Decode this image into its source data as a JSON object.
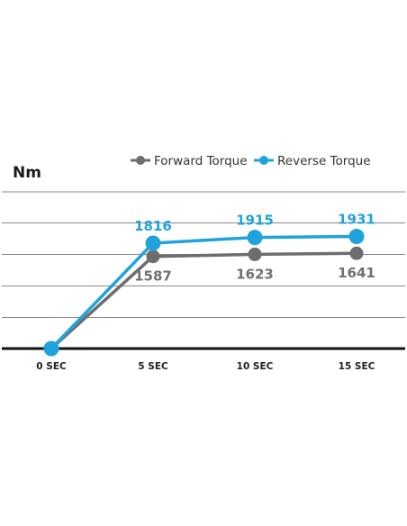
{
  "chart_data": {
    "type": "line",
    "title": "",
    "xlabel": "",
    "ylabel": "Nm",
    "categories": [
      "0 SEC",
      "5 SEC",
      "10 SEC",
      "15 SEC"
    ],
    "ylim": [
      0,
      2700
    ],
    "grid": true,
    "legend_position": "top-right",
    "series": [
      {
        "name": "Forward Torque",
        "color": "#6d6d6d",
        "values": [
          0,
          1587,
          1623,
          1641
        ],
        "labels": [
          "",
          "1587",
          "1623",
          "1641"
        ],
        "label_position": "below"
      },
      {
        "name": "Reverse Torque",
        "color": "#1fa3dc",
        "values": [
          0,
          1816,
          1915,
          1931
        ],
        "labels": [
          "",
          "1816",
          "1915",
          "1931"
        ],
        "label_position": "above"
      }
    ]
  }
}
